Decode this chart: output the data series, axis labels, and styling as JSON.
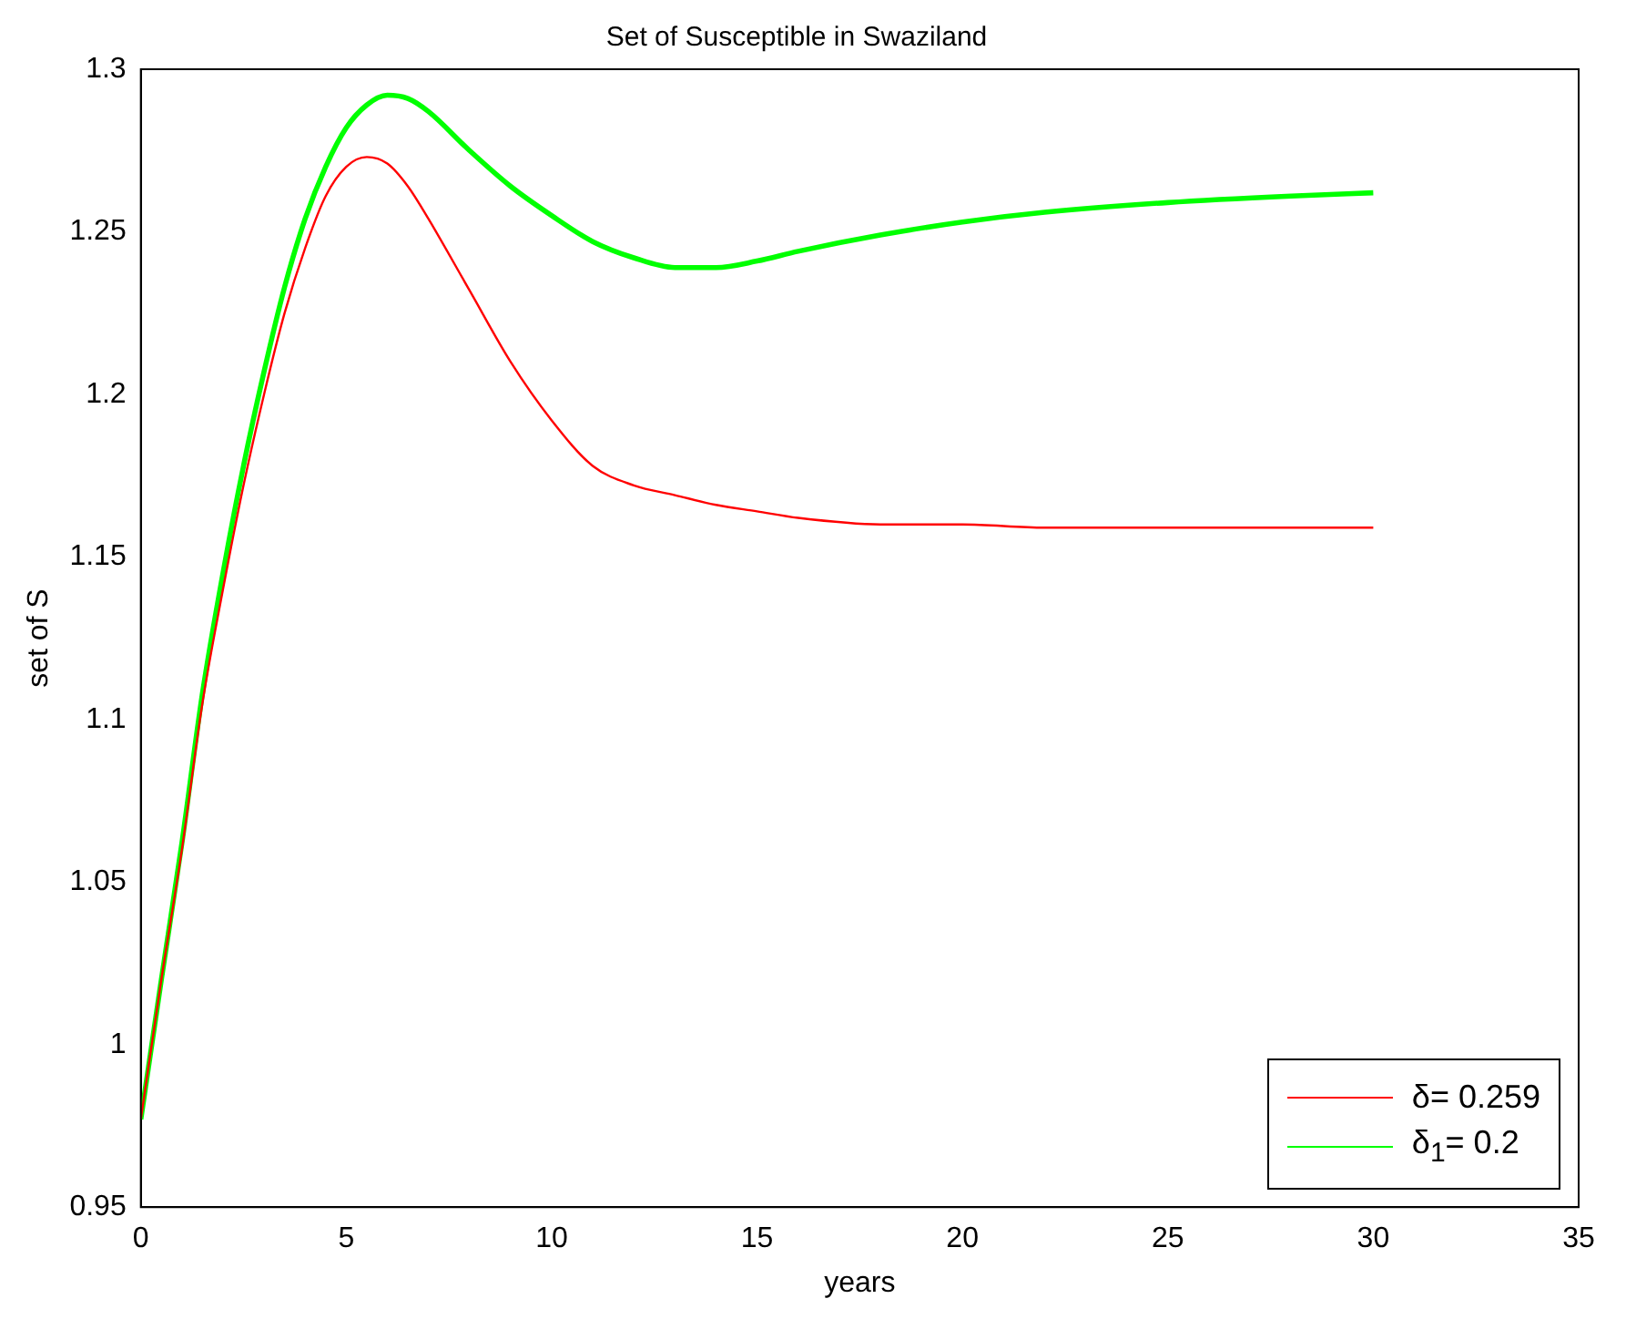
{
  "chart_data": {
    "type": "line",
    "title": "Set of Susceptible in Swaziland",
    "xlabel": "years",
    "ylabel": "set of S",
    "x": [
      0,
      0.5,
      1,
      1.5,
      2,
      2.5,
      3,
      3.5,
      4,
      4.5,
      5,
      5.5,
      6,
      6.5,
      7,
      8,
      9,
      10,
      11,
      12,
      13,
      14,
      15,
      16,
      18,
      20,
      22,
      25,
      28,
      30
    ],
    "series": [
      {
        "name": "δ= 0.259",
        "color": "#ff0000",
        "values": [
          0.977,
          1.02,
          1.06,
          1.105,
          1.14,
          1.172,
          1.2,
          1.225,
          1.245,
          1.261,
          1.27,
          1.273,
          1.271,
          1.264,
          1.254,
          1.232,
          1.21,
          1.192,
          1.178,
          1.172,
          1.169,
          1.166,
          1.164,
          1.162,
          1.16,
          1.16,
          1.159,
          1.159,
          1.159,
          1.159
        ]
      },
      {
        "name": "δ$_{1}$= 0.2",
        "color": "#00ff00",
        "values": [
          0.977,
          1.02,
          1.062,
          1.108,
          1.145,
          1.178,
          1.207,
          1.233,
          1.254,
          1.27,
          1.282,
          1.289,
          1.292,
          1.291,
          1.287,
          1.275,
          1.264,
          1.255,
          1.247,
          1.242,
          1.239,
          1.239,
          1.241,
          1.244,
          1.249,
          1.253,
          1.256,
          1.259,
          1.261,
          1.262
        ]
      }
    ],
    "xlim": [
      0,
      35
    ],
    "xticks": [
      0,
      5,
      10,
      15,
      20,
      25,
      30,
      35
    ],
    "ylim": [
      0.95,
      1.3
    ],
    "yticks": [
      0.95,
      1,
      1.05,
      1.1,
      1.15,
      1.2,
      1.25,
      1.3
    ],
    "grid": false,
    "legend": "bottom right",
    "marker": "none",
    "line_style": "solid"
  }
}
